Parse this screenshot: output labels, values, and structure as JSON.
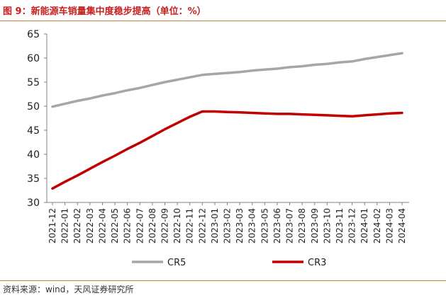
{
  "figure": {
    "title": "图 9：新能源车销量集中度稳步提高（单位：%）",
    "source": "资料来源：wind，天风证券研究所"
  },
  "chart_data": {
    "type": "line",
    "title": "新能源车销量集中度稳步提高",
    "unit": "%",
    "x": [
      "2021-12",
      "2022-01",
      "2022-02",
      "2022-03",
      "2022-04",
      "2022-05",
      "2022-06",
      "2022-07",
      "2022-08",
      "2022-09",
      "2022-10",
      "2022-11",
      "2022-12",
      "2023-01",
      "2023-02",
      "2023-03",
      "2023-04",
      "2023-05",
      "2023-06",
      "2023-07",
      "2023-08",
      "2023-09",
      "2023-10",
      "2023-11",
      "2023-12",
      "2024-01",
      "2024-02",
      "2024-03",
      "2024-04"
    ],
    "ylim": [
      30,
      65
    ],
    "yticks": [
      30,
      35,
      40,
      45,
      50,
      55,
      60,
      65
    ],
    "grid": false,
    "legend_position": "bottom",
    "series": [
      {
        "name": "CR5",
        "color": "#a6a6a6",
        "values": [
          49.9,
          50.5,
          51.1,
          51.6,
          52.2,
          52.7,
          53.3,
          53.8,
          54.4,
          55.0,
          55.5,
          56.0,
          56.5,
          56.7,
          56.9,
          57.1,
          57.4,
          57.6,
          57.8,
          58.1,
          58.3,
          58.6,
          58.8,
          59.1,
          59.3,
          59.8,
          60.2,
          60.6,
          61.0
        ]
      },
      {
        "name": "CR3",
        "color": "#c00000",
        "values": [
          32.9,
          34.3,
          35.6,
          37.0,
          38.4,
          39.7,
          41.1,
          42.4,
          43.8,
          45.2,
          46.5,
          47.8,
          48.9,
          48.9,
          48.8,
          48.7,
          48.6,
          48.5,
          48.4,
          48.4,
          48.3,
          48.2,
          48.1,
          48.0,
          47.9,
          48.1,
          48.3,
          48.5,
          48.6
        ]
      }
    ]
  }
}
